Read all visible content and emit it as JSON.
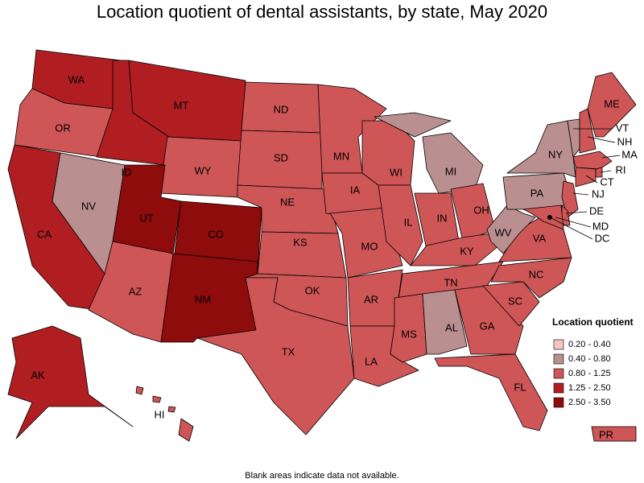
{
  "title": "Location quotient of dental assistants, by state, May 2020",
  "legend": {
    "title": "Location quotient",
    "items": [
      {
        "label": "0.20 - 0.40",
        "color": "#f5c4c4"
      },
      {
        "label": "0.40 - 0.80",
        "color": "#ba8f8f"
      },
      {
        "label": "0.80 - 1.25",
        "color": "#cf5656"
      },
      {
        "label": "1.25 - 2.50",
        "color": "#b01e22"
      },
      {
        "label": "2.50 - 3.50",
        "color": "#8e0c0c"
      }
    ]
  },
  "states": [
    {
      "label": "WA",
      "color": "#b01e22"
    },
    {
      "label": "OR",
      "color": "#cf5656"
    },
    {
      "label": "CA",
      "color": "#b01e22"
    },
    {
      "label": "NV",
      "color": "#ba8f8f"
    },
    {
      "label": "ID",
      "color": "#b01e22"
    },
    {
      "label": "MT",
      "color": "#b01e22"
    },
    {
      "label": "WY",
      "color": "#cf5656"
    },
    {
      "label": "UT",
      "color": "#8e0c0c"
    },
    {
      "label": "CO",
      "color": "#8e0c0c"
    },
    {
      "label": "AZ",
      "color": "#cf5656"
    },
    {
      "label": "NM",
      "color": "#8e0c0c"
    },
    {
      "label": "ND",
      "color": "#cf5656"
    },
    {
      "label": "SD",
      "color": "#cf5656"
    },
    {
      "label": "NE",
      "color": "#cf5656"
    },
    {
      "label": "KS",
      "color": "#cf5656"
    },
    {
      "label": "OK",
      "color": "#cf5656"
    },
    {
      "label": "TX",
      "color": "#cf5656"
    },
    {
      "label": "MN",
      "color": "#cf5656"
    },
    {
      "label": "IA",
      "color": "#cf5656"
    },
    {
      "label": "MO",
      "color": "#cf5656"
    },
    {
      "label": "AR",
      "color": "#cf5656"
    },
    {
      "label": "LA",
      "color": "#cf5656"
    },
    {
      "label": "WI",
      "color": "#cf5656"
    },
    {
      "label": "IL",
      "color": "#cf5656"
    },
    {
      "label": "MI",
      "color": "#ba8f8f"
    },
    {
      "label": "IN",
      "color": "#cf5656"
    },
    {
      "label": "OH",
      "color": "#cf5656"
    },
    {
      "label": "KY",
      "color": "#cf5656"
    },
    {
      "label": "TN",
      "color": "#cf5656"
    },
    {
      "label": "MS",
      "color": "#cf5656"
    },
    {
      "label": "AL",
      "color": "#ba8f8f"
    },
    {
      "label": "GA",
      "color": "#cf5656"
    },
    {
      "label": "FL",
      "color": "#cf5656"
    },
    {
      "label": "SC",
      "color": "#cf5656"
    },
    {
      "label": "NC",
      "color": "#cf5656"
    },
    {
      "label": "VA",
      "color": "#cf5656"
    },
    {
      "label": "WV",
      "color": "#ba8f8f"
    },
    {
      "label": "PA",
      "color": "#ba8f8f"
    },
    {
      "label": "NY",
      "color": "#ba8f8f"
    },
    {
      "label": "VT",
      "color": "#ba8f8f"
    },
    {
      "label": "NH",
      "color": "#cf5656"
    },
    {
      "label": "MA",
      "color": "#cf5656"
    },
    {
      "label": "RI",
      "color": "#cf5656"
    },
    {
      "label": "CT",
      "color": "#cf5656"
    },
    {
      "label": "NJ",
      "color": "#cf5656"
    },
    {
      "label": "DE",
      "color": "#cf5656"
    },
    {
      "label": "MD",
      "color": "#cf5656"
    },
    {
      "label": "DC",
      "color": "#8e0c0c"
    },
    {
      "label": "ME",
      "color": "#cf5656"
    },
    {
      "label": "AK",
      "color": "#b01e22"
    },
    {
      "label": "HI",
      "color": "#cf5656"
    },
    {
      "label": "PR",
      "color": "#cf5656"
    }
  ],
  "footnote": "Blank areas indicate data not available."
}
